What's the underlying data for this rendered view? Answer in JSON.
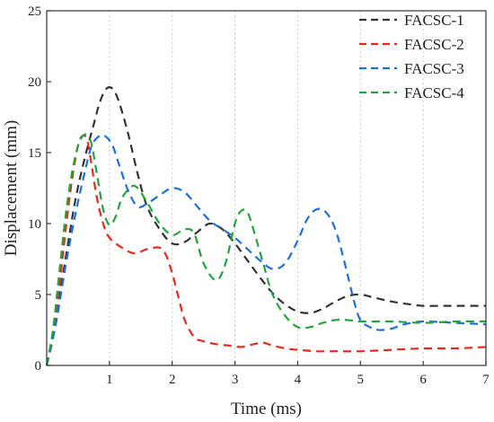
{
  "chart_data": {
    "type": "line",
    "xlabel": "Time (ms)",
    "ylabel": "Displacement (mm)",
    "xlim": [
      0,
      7
    ],
    "ylim": [
      0,
      25
    ],
    "xticks": [
      1,
      2,
      3,
      4,
      5,
      6,
      7
    ],
    "yticks": [
      0,
      5,
      10,
      15,
      20,
      25
    ],
    "grid": true,
    "legend_position": "top-right",
    "series": [
      {
        "name": "FACSC-1",
        "color": "#333333",
        "x": [
          0,
          0.15,
          0.3,
          0.45,
          0.6,
          0.75,
          0.85,
          0.95,
          1.05,
          1.15,
          1.3,
          1.45,
          1.6,
          1.8,
          2.0,
          2.2,
          2.4,
          2.6,
          2.8,
          3.0,
          3.2,
          3.4,
          3.6,
          3.8,
          4.0,
          4.2,
          4.4,
          4.6,
          4.8,
          5.0,
          5.2,
          5.5,
          5.8,
          6.0,
          6.3,
          6.6,
          7.0
        ],
        "y": [
          0,
          3.5,
          7.5,
          11.5,
          14.5,
          17.0,
          18.6,
          19.5,
          19.5,
          18.6,
          16.3,
          13.5,
          11.2,
          9.6,
          8.6,
          8.7,
          9.4,
          10.0,
          9.6,
          8.6,
          7.4,
          6.2,
          5.1,
          4.3,
          3.8,
          3.7,
          4.0,
          4.5,
          4.9,
          5.0,
          4.8,
          4.5,
          4.3,
          4.2,
          4.2,
          4.2,
          4.2
        ]
      },
      {
        "name": "FACSC-2",
        "color": "#e8281e",
        "x": [
          0,
          0.1,
          0.2,
          0.3,
          0.4,
          0.5,
          0.58,
          0.65,
          0.72,
          0.8,
          0.9,
          1.0,
          1.2,
          1.4,
          1.6,
          1.8,
          1.9,
          2.0,
          2.1,
          2.2,
          2.35,
          2.5,
          2.7,
          2.9,
          3.1,
          3.3,
          3.45,
          3.6,
          3.8,
          4.0,
          4.3,
          4.6,
          5.0,
          5.5,
          6.0,
          6.5,
          7.0
        ],
        "y": [
          0,
          2.0,
          5.5,
          9.5,
          13.0,
          15.5,
          16.2,
          15.8,
          14.0,
          11.8,
          10.0,
          9.0,
          8.3,
          7.9,
          8.2,
          8.3,
          7.8,
          6.5,
          4.8,
          3.2,
          2.0,
          1.7,
          1.5,
          1.4,
          1.3,
          1.5,
          1.6,
          1.4,
          1.2,
          1.1,
          1.0,
          1.0,
          1.0,
          1.1,
          1.2,
          1.2,
          1.3
        ]
      },
      {
        "name": "FACSC-3",
        "color": "#1f6fd6",
        "x": [
          0,
          0.15,
          0.3,
          0.45,
          0.6,
          0.72,
          0.85,
          0.95,
          1.05,
          1.15,
          1.3,
          1.45,
          1.6,
          1.8,
          2.0,
          2.2,
          2.4,
          2.6,
          2.8,
          3.0,
          3.2,
          3.4,
          3.6,
          3.8,
          4.0,
          4.15,
          4.3,
          4.45,
          4.6,
          4.75,
          4.9,
          5.0,
          5.15,
          5.3,
          5.5,
          5.7,
          6.0,
          6.5,
          7.0
        ],
        "y": [
          0,
          3.0,
          7.0,
          10.5,
          13.5,
          15.5,
          16.2,
          16.1,
          15.5,
          14.2,
          12.3,
          11.2,
          11.4,
          12.0,
          12.5,
          12.2,
          11.2,
          10.2,
          9.6,
          9.0,
          8.2,
          7.4,
          6.8,
          7.2,
          8.8,
          10.3,
          11.0,
          10.8,
          9.6,
          7.2,
          4.5,
          3.2,
          2.7,
          2.5,
          2.6,
          2.9,
          3.1,
          3.0,
          2.9
        ]
      },
      {
        "name": "FACSC-4",
        "color": "#23a33c",
        "x": [
          0,
          0.1,
          0.2,
          0.3,
          0.4,
          0.5,
          0.58,
          0.65,
          0.72,
          0.8,
          0.9,
          1.0,
          1.1,
          1.2,
          1.35,
          1.45,
          1.6,
          1.8,
          2.0,
          2.2,
          2.35,
          2.5,
          2.7,
          2.85,
          3.0,
          3.1,
          3.2,
          3.3,
          3.45,
          3.6,
          3.8,
          4.0,
          4.2,
          4.4,
          4.6,
          4.8,
          5.0,
          5.5,
          6.0,
          6.5,
          7.0
        ],
        "y": [
          0,
          2.5,
          6.5,
          10.5,
          13.5,
          15.5,
          16.2,
          16.2,
          15.5,
          13.5,
          11.0,
          9.9,
          10.5,
          11.8,
          12.6,
          12.5,
          11.5,
          10.0,
          9.2,
          9.6,
          9.3,
          7.2,
          6.0,
          7.2,
          10.0,
          10.9,
          10.8,
          9.5,
          7.2,
          5.0,
          3.5,
          2.7,
          2.7,
          3.0,
          3.2,
          3.2,
          3.1,
          3.1,
          3.0,
          3.1,
          3.1
        ]
      }
    ]
  }
}
